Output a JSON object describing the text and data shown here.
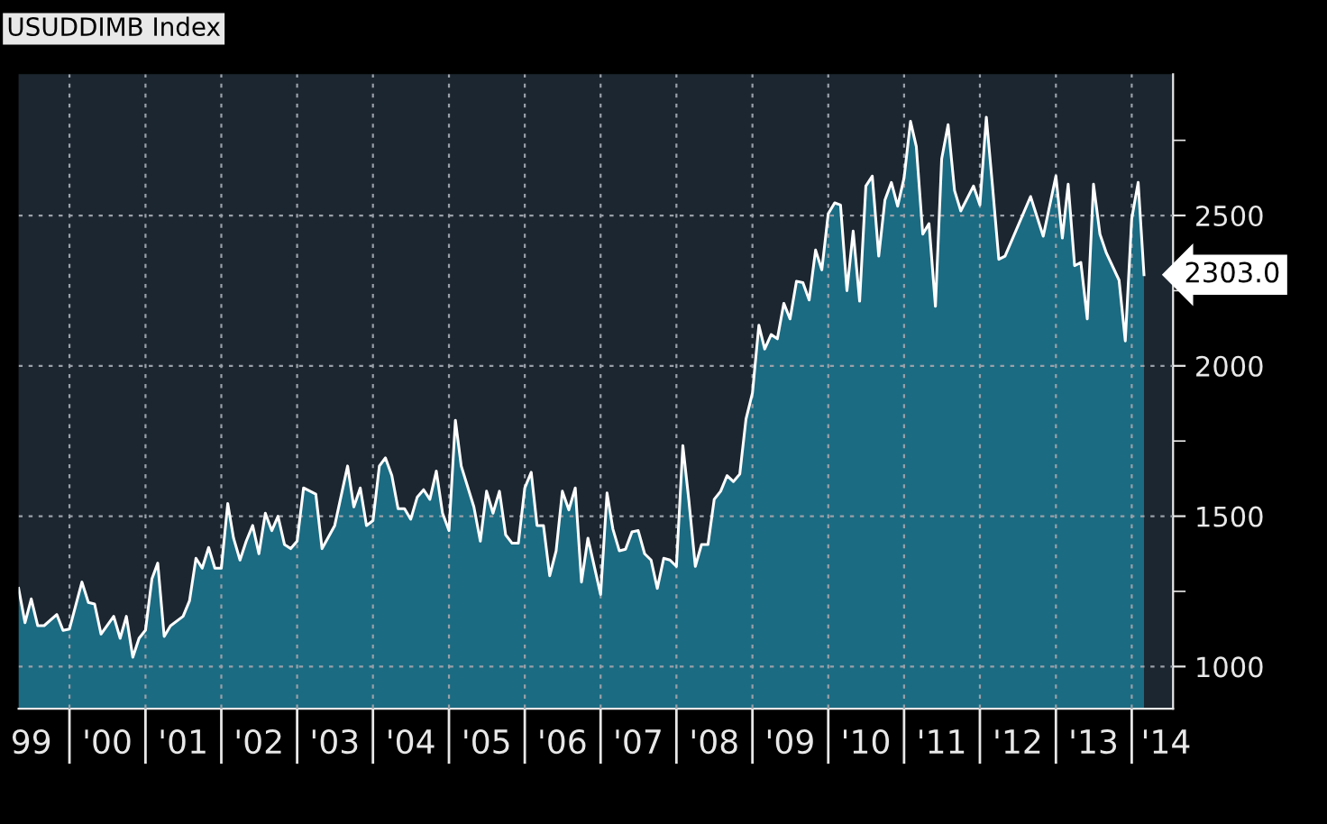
{
  "chart_data": {
    "type": "area",
    "title": "USUDDIMB Index",
    "x": [
      "1999-05",
      "1999-06",
      "1999-07",
      "1999-08",
      "1999-09",
      "1999-11",
      "1999-12",
      "2000-01",
      "2000-03",
      "2000-04",
      "2000-05",
      "2000-06",
      "2000-08",
      "2000-09",
      "2000-10",
      "2000-11",
      "2000-12",
      "2001-01",
      "2001-02",
      "2001-03",
      "2001-04",
      "2001-05",
      "2001-07",
      "2001-08",
      "2001-09",
      "2001-10",
      "2001-11",
      "2001-12",
      "2002-01",
      "2002-02",
      "2002-03",
      "2002-04",
      "2002-05",
      "2002-06",
      "2002-07",
      "2002-08",
      "2002-09",
      "2002-10",
      "2002-11",
      "2002-12",
      "2003-01",
      "2003-02",
      "2003-04",
      "2003-05",
      "2003-07",
      "2003-09",
      "2003-10",
      "2003-11",
      "2003-12",
      "2004-01",
      "2004-02",
      "2004-03",
      "2004-04",
      "2004-05",
      "2004-06",
      "2004-07",
      "2004-08",
      "2004-09",
      "2004-10",
      "2004-11",
      "2004-12",
      "2005-01",
      "2005-02",
      "2005-03",
      "2005-05",
      "2005-06",
      "2005-07",
      "2005-08",
      "2005-09",
      "2005-10",
      "2005-11",
      "2005-12",
      "2006-01",
      "2006-02",
      "2006-03",
      "2006-04",
      "2006-05",
      "2006-06",
      "2006-07",
      "2006-08",
      "2006-09",
      "2006-10",
      "2006-11",
      "2007-01",
      "2007-02",
      "2007-03",
      "2007-04",
      "2007-05",
      "2007-06",
      "2007-07",
      "2007-08",
      "2007-09",
      "2007-10",
      "2007-11",
      "2007-12",
      "2008-01",
      "2008-02",
      "2008-03",
      "2008-04",
      "2008-05",
      "2008-06",
      "2008-07",
      "2008-08",
      "2008-09",
      "2008-10",
      "2008-11",
      "2008-12",
      "2009-01",
      "2009-02",
      "2009-03",
      "2009-04",
      "2009-05",
      "2009-06",
      "2009-07",
      "2009-08",
      "2009-09",
      "2009-10",
      "2009-11",
      "2009-12",
      "2010-01",
      "2010-02",
      "2010-03",
      "2010-04",
      "2010-05",
      "2010-06",
      "2010-07",
      "2010-08",
      "2010-09",
      "2010-10",
      "2010-11",
      "2010-12",
      "2011-01",
      "2011-02",
      "2011-03",
      "2011-04",
      "2011-05",
      "2011-06",
      "2011-07",
      "2011-08",
      "2011-09",
      "2011-10",
      "2011-12",
      "2012-01",
      "2012-02",
      "2012-03",
      "2012-04",
      "2012-05",
      "2012-09",
      "2012-11",
      "2013-01",
      "2013-02",
      "2013-03",
      "2013-04",
      "2013-05",
      "2013-06",
      "2013-07",
      "2013-08",
      "2013-09",
      "2013-11",
      "2013-12",
      "2014-01",
      "2014-02",
      "2014-03"
    ],
    "series": [
      {
        "color": "#1b6b82",
        "values": [
          1260,
          1146,
          1225,
          1136,
          1136,
          1173,
          1120,
          1125,
          1281,
          1213,
          1208,
          1108,
          1167,
          1094,
          1167,
          1031,
          1094,
          1121,
          1292,
          1344,
          1100,
          1135,
          1167,
          1219,
          1360,
          1327,
          1396,
          1327,
          1327,
          1542,
          1427,
          1354,
          1417,
          1469,
          1375,
          1510,
          1452,
          1500,
          1406,
          1392,
          1417,
          1594,
          1573,
          1392,
          1469,
          1667,
          1531,
          1594,
          1469,
          1485,
          1667,
          1694,
          1635,
          1525,
          1525,
          1490,
          1563,
          1588,
          1556,
          1650,
          1510,
          1452,
          1819,
          1667,
          1531,
          1417,
          1583,
          1510,
          1583,
          1438,
          1410,
          1410,
          1594,
          1646,
          1469,
          1469,
          1302,
          1385,
          1583,
          1521,
          1594,
          1281,
          1427,
          1240,
          1577,
          1458,
          1385,
          1390,
          1448,
          1452,
          1375,
          1354,
          1260,
          1360,
          1354,
          1333,
          1735,
          1552,
          1333,
          1406,
          1406,
          1556,
          1583,
          1635,
          1615,
          1640,
          1823,
          1910,
          2135,
          2056,
          2104,
          2090,
          2208,
          2156,
          2281,
          2277,
          2219,
          2385,
          2319,
          2506,
          2542,
          2535,
          2250,
          2448,
          2215,
          2598,
          2631,
          2365,
          2552,
          2610,
          2531,
          2625,
          2813,
          2729,
          2438,
          2473,
          2198,
          2688,
          2802,
          2583,
          2515,
          2598,
          2535,
          2827,
          2604,
          2354,
          2365,
          2563,
          2431,
          2631,
          2425,
          2604,
          2333,
          2344,
          2156,
          2604,
          2438,
          2375,
          2285,
          2083,
          2490,
          2610,
          2303
        ]
      }
    ],
    "xlim": [
      "1999-05-01",
      "2014-07-19"
    ],
    "xticks": [
      {
        "value": "2000-01-01",
        "label": null
      },
      {
        "value": "2001-01-01",
        "label": null
      },
      {
        "value": "2002-01-01",
        "label": null
      },
      {
        "value": "2003-01-01",
        "label": null
      },
      {
        "value": "2004-01-01",
        "label": null
      },
      {
        "value": "2005-01-01",
        "label": null
      },
      {
        "value": "2006-01-01",
        "label": null
      },
      {
        "value": "2007-01-01",
        "label": null
      },
      {
        "value": "2008-01-01",
        "label": null
      },
      {
        "value": "2009-01-01",
        "label": null
      },
      {
        "value": "2010-01-01",
        "label": null
      },
      {
        "value": "2011-01-01",
        "label": null
      },
      {
        "value": "2012-01-01",
        "label": null
      },
      {
        "value": "2013-01-01",
        "label": null
      },
      {
        "value": "2014-01-01",
        "label": null
      },
      {
        "value": "1999-07-01",
        "label": "99"
      },
      {
        "value": "2000-07-01",
        "label": "'00"
      },
      {
        "value": "2001-07-01",
        "label": "'01"
      },
      {
        "value": "2002-07-01",
        "label": "'02"
      },
      {
        "value": "2003-07-01",
        "label": "'03"
      },
      {
        "value": "2004-07-01",
        "label": "'04"
      },
      {
        "value": "2005-07-01",
        "label": "'05"
      },
      {
        "value": "2006-07-01",
        "label": "'06"
      },
      {
        "value": "2007-07-01",
        "label": "'07"
      },
      {
        "value": "2008-07-01",
        "label": "'08"
      },
      {
        "value": "2009-07-01",
        "label": "'09"
      },
      {
        "value": "2010-07-01",
        "label": "'10"
      },
      {
        "value": "2011-07-01",
        "label": "'11"
      },
      {
        "value": "2012-07-01",
        "label": "'12"
      },
      {
        "value": "2013-07-01",
        "label": "'13"
      },
      {
        "value": "2014-06-15",
        "label": "'14"
      }
    ],
    "ylim": [
      860,
      2970
    ],
    "yticks": [
      1000,
      {
        "value": 1250,
        "label": null
      },
      1500,
      {
        "value": 1750,
        "label": null
      },
      2000,
      {
        "value": 2250,
        "label": null
      },
      2500,
      {
        "value": 2750,
        "label": null
      }
    ],
    "annotations": [
      {
        "text": "2303.0",
        "x": "2014-03",
        "y": 2303
      }
    ],
    "grid": true
  }
}
